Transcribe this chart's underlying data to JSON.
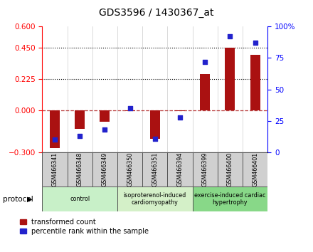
{
  "title": "GDS3596 / 1430367_at",
  "categories": [
    "GSM466341",
    "GSM466348",
    "GSM466349",
    "GSM466350",
    "GSM466351",
    "GSM466394",
    "GSM466399",
    "GSM466400",
    "GSM466401"
  ],
  "red_values": [
    -0.27,
    -0.13,
    -0.08,
    -0.005,
    -0.2,
    -0.005,
    0.26,
    0.45,
    0.4
  ],
  "blue_values_pct": [
    10,
    13,
    18,
    35,
    11,
    28,
    72,
    92,
    87
  ],
  "ylim_left": [
    -0.3,
    0.6
  ],
  "ylim_right": [
    0,
    100
  ],
  "yticks_left": [
    -0.3,
    0,
    0.225,
    0.45,
    0.6
  ],
  "yticks_right": [
    0,
    25,
    50,
    75,
    100
  ],
  "hlines": [
    0.225,
    0.45
  ],
  "groups": [
    {
      "label": "control",
      "start": 0,
      "end": 3,
      "color": "#c8f0c8"
    },
    {
      "label": "isoproterenol-induced\ncardiomyopathy",
      "start": 3,
      "end": 6,
      "color": "#d4f0c8"
    },
    {
      "label": "exercise-induced cardiac\nhypertrophy",
      "start": 6,
      "end": 9,
      "color": "#88d888"
    }
  ],
  "bar_color": "#aa1111",
  "dot_color": "#2222cc",
  "bar_width": 0.4,
  "dot_size": 22,
  "background_color": "#ffffff",
  "legend_labels": [
    "transformed count",
    "percentile rank within the sample"
  ],
  "protocol_label": "protocol"
}
